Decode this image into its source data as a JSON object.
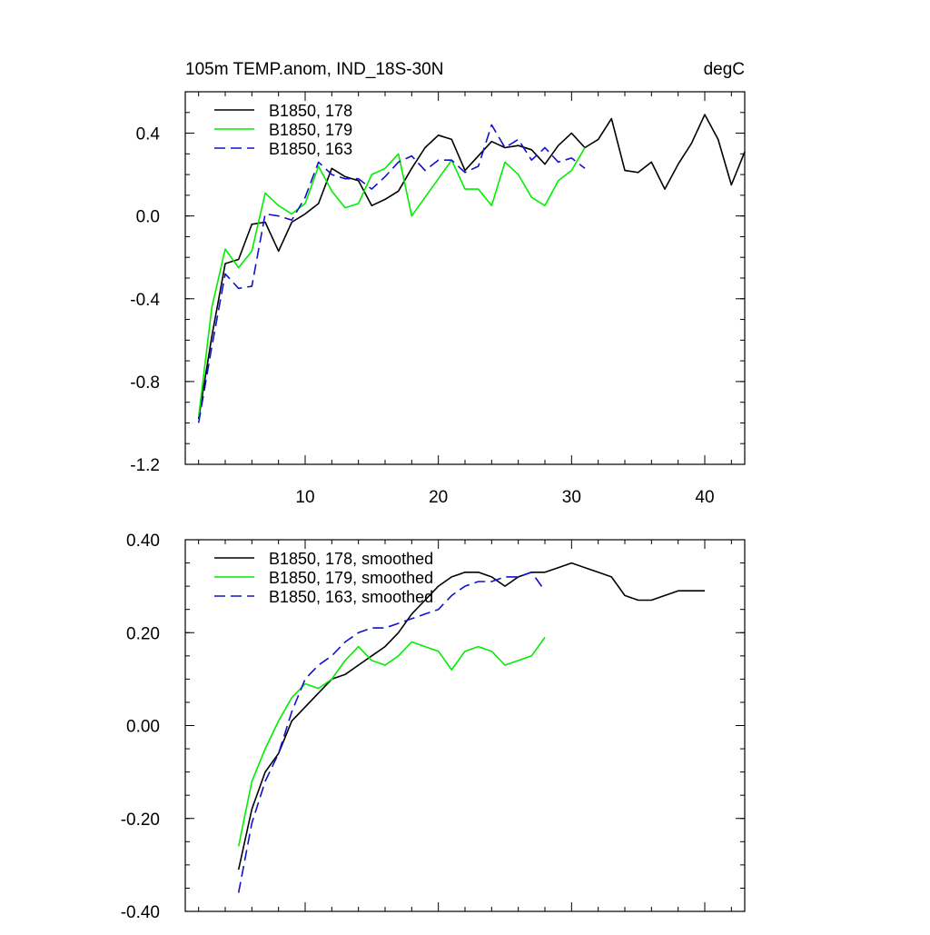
{
  "chart_data": [
    {
      "type": "line",
      "title": "105m TEMP.anom, IND_18S-30N",
      "units": "degC",
      "xlim": [
        1,
        43
      ],
      "ylim": [
        -1.2,
        0.6
      ],
      "xticks": [
        10,
        20,
        30,
        40
      ],
      "xtick_labels": [
        "10",
        "20",
        "30",
        "40"
      ],
      "yticks": [
        -1.2,
        -0.8,
        -0.4,
        0.0,
        0.4
      ],
      "ytick_labels": [
        "-1.2",
        "-0.8",
        "-0.4",
        "0.0",
        "0.4"
      ],
      "legend_position": "top-left",
      "series": [
        {
          "name": "B1850, 178",
          "color": "#000000",
          "dash": "solid",
          "x": [
            2,
            3,
            4,
            5,
            6,
            7,
            8,
            9,
            10,
            11,
            12,
            13,
            14,
            15,
            16,
            17,
            18,
            19,
            20,
            21,
            22,
            23,
            24,
            25,
            26,
            27,
            28,
            29,
            30,
            31,
            32,
            33,
            34,
            35,
            36,
            37,
            38,
            39,
            40,
            41,
            42,
            43
          ],
          "y": [
            -0.98,
            -0.58,
            -0.23,
            -0.21,
            -0.04,
            -0.03,
            -0.17,
            -0.03,
            0.01,
            0.06,
            0.23,
            0.19,
            0.17,
            0.05,
            0.08,
            0.12,
            0.23,
            0.33,
            0.39,
            0.37,
            0.22,
            0.29,
            0.36,
            0.33,
            0.34,
            0.32,
            0.25,
            0.34,
            0.4,
            0.33,
            0.37,
            0.47,
            0.22,
            0.21,
            0.26,
            0.13,
            0.25,
            0.35,
            0.49,
            0.37,
            0.15,
            0.31
          ]
        },
        {
          "name": "B1850, 179",
          "color": "#00ee00",
          "dash": "solid",
          "x": [
            2,
            3,
            4,
            5,
            6,
            7,
            8,
            9,
            10,
            11,
            12,
            13,
            14,
            15,
            16,
            17,
            18,
            19,
            20,
            21,
            22,
            23,
            24,
            25,
            26,
            27,
            28,
            29,
            30,
            31
          ],
          "y": [
            -0.97,
            -0.44,
            -0.16,
            -0.25,
            -0.17,
            0.11,
            0.05,
            0.01,
            0.06,
            0.24,
            0.12,
            0.04,
            0.06,
            0.2,
            0.23,
            0.3,
            0.0,
            0.09,
            0.18,
            0.27,
            0.13,
            0.13,
            0.05,
            0.26,
            0.2,
            0.09,
            0.05,
            0.17,
            0.22,
            0.33
          ]
        },
        {
          "name": "B1850, 163",
          "color": "#1111cc",
          "dash": "dashed",
          "x": [
            2,
            3,
            4,
            5,
            6,
            7,
            8,
            9,
            10,
            11,
            12,
            13,
            14,
            15,
            16,
            17,
            18,
            19,
            20,
            21,
            22,
            23,
            24,
            25,
            26,
            27,
            28,
            29,
            30,
            31
          ],
          "y": [
            -1.0,
            -0.63,
            -0.28,
            -0.35,
            -0.34,
            0.01,
            0.0,
            -0.02,
            0.09,
            0.26,
            0.2,
            0.18,
            0.18,
            0.13,
            0.19,
            0.26,
            0.29,
            0.22,
            0.27,
            0.27,
            0.21,
            0.24,
            0.44,
            0.33,
            0.37,
            0.27,
            0.33,
            0.26,
            0.28,
            0.23
          ]
        }
      ]
    },
    {
      "type": "line",
      "xlim": [
        1,
        43
      ],
      "ylim": [
        -0.4,
        0.4
      ],
      "xticks": [
        10,
        20,
        30,
        40
      ],
      "yticks": [
        -0.4,
        -0.2,
        0.0,
        0.2,
        0.4
      ],
      "ytick_labels": [
        "-0.40",
        "-0.20",
        "0.00",
        "0.20",
        "0.40"
      ],
      "legend_position": "top-left",
      "series": [
        {
          "name": "B1850, 178, smoothed",
          "color": "#000000",
          "dash": "solid",
          "x": [
            5,
            6,
            7,
            8,
            9,
            10,
            11,
            12,
            13,
            14,
            15,
            16,
            17,
            18,
            19,
            20,
            21,
            22,
            23,
            24,
            25,
            26,
            27,
            28,
            29,
            30,
            31,
            32,
            33,
            34,
            35,
            36,
            37,
            38,
            39,
            40
          ],
          "y": [
            -0.31,
            -0.18,
            -0.1,
            -0.06,
            0.01,
            0.04,
            0.07,
            0.1,
            0.11,
            0.13,
            0.15,
            0.17,
            0.2,
            0.24,
            0.27,
            0.3,
            0.32,
            0.33,
            0.33,
            0.32,
            0.3,
            0.32,
            0.33,
            0.33,
            0.34,
            0.35,
            0.34,
            0.33,
            0.32,
            0.28,
            0.27,
            0.27,
            0.28,
            0.29,
            0.29,
            0.29
          ]
        },
        {
          "name": "B1850, 179, smoothed",
          "color": "#00ee00",
          "dash": "solid",
          "x": [
            5,
            6,
            7,
            8,
            9,
            10,
            11,
            12,
            13,
            14,
            15,
            16,
            17,
            18,
            19,
            20,
            21,
            22,
            23,
            24,
            25,
            26,
            27,
            28
          ],
          "y": [
            -0.26,
            -0.12,
            -0.05,
            0.01,
            0.06,
            0.09,
            0.08,
            0.1,
            0.14,
            0.17,
            0.14,
            0.13,
            0.15,
            0.18,
            0.17,
            0.16,
            0.12,
            0.16,
            0.17,
            0.16,
            0.13,
            0.14,
            0.15,
            0.19
          ]
        },
        {
          "name": "B1850, 163, smoothed",
          "color": "#1111cc",
          "dash": "dashed",
          "x": [
            5,
            6,
            7,
            8,
            9,
            10,
            11,
            12,
            13,
            14,
            15,
            16,
            17,
            18,
            19,
            20,
            21,
            22,
            23,
            24,
            25,
            26,
            27,
            28
          ],
          "y": [
            -0.36,
            -0.21,
            -0.12,
            -0.06,
            0.03,
            0.1,
            0.13,
            0.15,
            0.18,
            0.2,
            0.21,
            0.21,
            0.22,
            0.23,
            0.24,
            0.25,
            0.28,
            0.3,
            0.31,
            0.31,
            0.32,
            0.32,
            0.33,
            0.29
          ]
        }
      ]
    }
  ]
}
